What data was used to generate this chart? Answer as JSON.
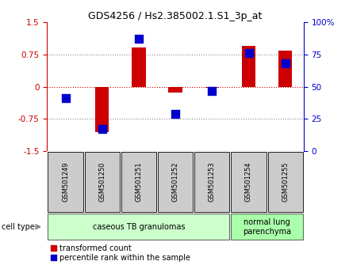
{
  "title": "GDS4256 / Hs2.385002.1.S1_3p_at",
  "samples": [
    "GSM501249",
    "GSM501250",
    "GSM501251",
    "GSM501252",
    "GSM501253",
    "GSM501254",
    "GSM501255"
  ],
  "red_values": [
    0.0,
    -1.05,
    0.92,
    -0.13,
    -0.03,
    0.95,
    0.85
  ],
  "blue_values_pct": [
    41,
    17,
    87,
    29,
    47,
    76,
    68
  ],
  "ylim_left": [
    -1.5,
    1.5
  ],
  "ylim_right": [
    0,
    100
  ],
  "yticks_left": [
    -1.5,
    -0.75,
    0,
    0.75,
    1.5
  ],
  "yticks_right": [
    0,
    25,
    50,
    75,
    100
  ],
  "ytick_labels_right": [
    "0",
    "25",
    "50",
    "75",
    "100%"
  ],
  "hlines": [
    0.75,
    0,
    -0.75
  ],
  "red_color": "#CC0000",
  "blue_color": "#0000CC",
  "bar_width": 0.38,
  "blue_marker_size": 55,
  "cell_type_groups": [
    {
      "label": "caseous TB granulomas",
      "samples": [
        0,
        1,
        2,
        3,
        4
      ],
      "color": "#ccffcc"
    },
    {
      "label": "normal lung\nparenchyma",
      "samples": [
        5,
        6
      ],
      "color": "#aaffaa"
    }
  ],
  "legend_red": "transformed count",
  "legend_blue": "percentile rank within the sample",
  "cell_type_label": "cell type",
  "sample_box_color": "#cccccc",
  "dotted_color": "#888888",
  "fig_width": 4.4,
  "fig_height": 3.54,
  "dpi": 100
}
